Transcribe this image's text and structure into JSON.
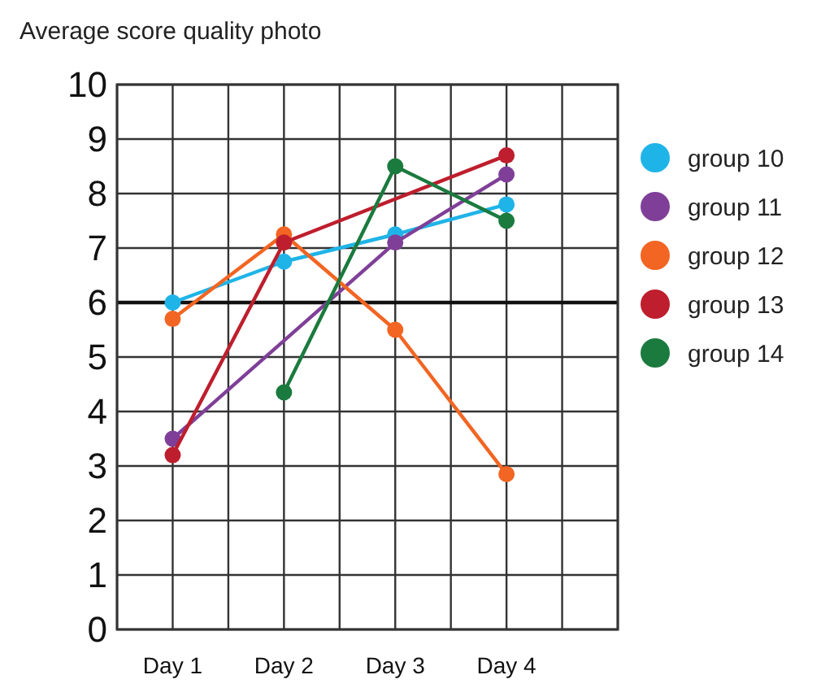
{
  "chart_data": {
    "type": "line",
    "title": "Average score quality photo",
    "categories": [
      null,
      "Day 1",
      null,
      "Day 2",
      null,
      "Day 3",
      null,
      "Day 4",
      null,
      null
    ],
    "ylim": [
      0,
      10
    ],
    "yticks": [
      0,
      1,
      2,
      3,
      4,
      5,
      6,
      7,
      8,
      9,
      10
    ],
    "grid": true,
    "legend": "right",
    "marker": "circle",
    "line_style": "solid",
    "ref_lines": [
      {
        "axis": "y",
        "value": 6,
        "label": null
      }
    ],
    "series": [
      {
        "name": "group 10",
        "color": "#1fb4e8",
        "values": [
          null,
          6.0,
          null,
          6.75,
          null,
          7.25,
          null,
          7.8,
          null,
          null
        ]
      },
      {
        "name": "group 11",
        "color": "#7f3f98",
        "values": [
          null,
          3.5,
          null,
          null,
          null,
          7.1,
          null,
          8.35,
          null,
          null
        ]
      },
      {
        "name": "group 12",
        "color": "#f26522",
        "values": [
          null,
          5.7,
          null,
          7.25,
          null,
          5.5,
          null,
          2.85,
          null,
          null
        ]
      },
      {
        "name": "group 13",
        "color": "#be1e2d",
        "values": [
          null,
          3.2,
          null,
          7.1,
          null,
          null,
          null,
          8.7,
          null,
          null
        ]
      },
      {
        "name": "group 14",
        "color": "#1b7a3e",
        "values": [
          null,
          null,
          null,
          4.35,
          null,
          8.5,
          null,
          7.5,
          null,
          null
        ]
      }
    ]
  }
}
